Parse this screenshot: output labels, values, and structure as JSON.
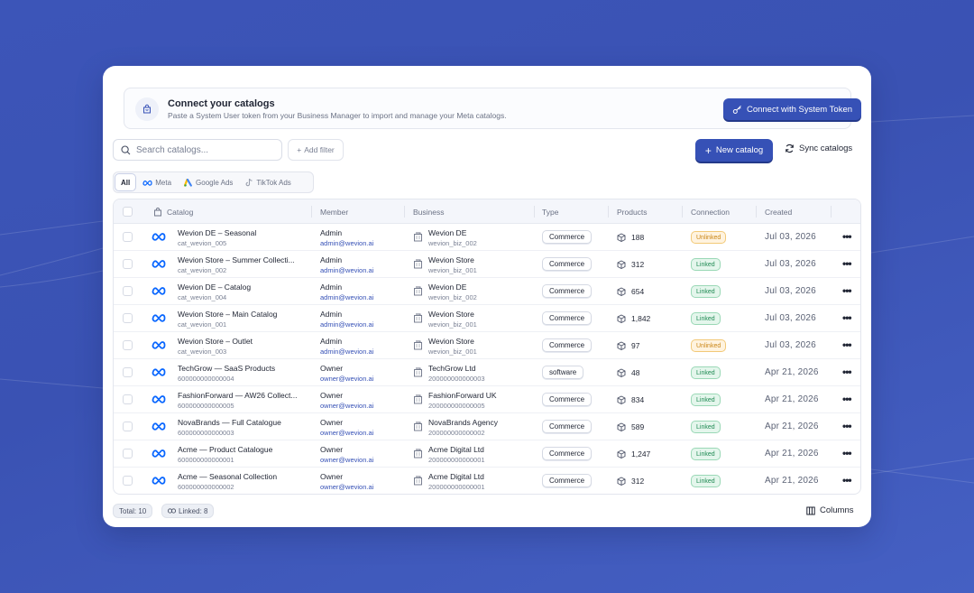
{
  "banner": {
    "title": "Connect your catalogs",
    "subtitle": "Paste a System User token from your Business Manager to import and manage your Meta catalogs.",
    "connect_label": "Connect with System Token"
  },
  "toolbar": {
    "search_placeholder": "Search catalogs...",
    "add_filter_label": "Add filter",
    "new_catalog_label": "New catalog",
    "sync_label": "Sync catalogs"
  },
  "tabs": [
    {
      "label": "All",
      "active": true
    },
    {
      "label": "Meta",
      "icon": "meta-icon"
    },
    {
      "label": "Google Ads",
      "icon": "google-ads-icon"
    },
    {
      "label": "TikTok Ads",
      "icon": "tiktok-icon"
    }
  ],
  "table": {
    "columns": [
      "Catalog",
      "Member",
      "Business",
      "Type",
      "Products",
      "Connection",
      "Created"
    ],
    "rows": [
      {
        "name": "Wevion DE – Seasonal",
        "id": "cat_wevion_005",
        "role": "Admin",
        "email": "admin@wevion.ai",
        "business": "Wevion DE",
        "business_id": "wevion_biz_002",
        "type": "Commerce",
        "products": "188",
        "connection": "Unlinked",
        "created": "Jul 03, 2026"
      },
      {
        "name": "Wevion Store – Summer Collecti...",
        "id": "cat_wevion_002",
        "role": "Admin",
        "email": "admin@wevion.ai",
        "business": "Wevion Store",
        "business_id": "wevion_biz_001",
        "type": "Commerce",
        "products": "312",
        "connection": "Linked",
        "created": "Jul 03, 2026"
      },
      {
        "name": "Wevion DE – Catalog",
        "id": "cat_wevion_004",
        "role": "Admin",
        "email": "admin@wevion.ai",
        "business": "Wevion DE",
        "business_id": "wevion_biz_002",
        "type": "Commerce",
        "products": "654",
        "connection": "Linked",
        "created": "Jul 03, 2026"
      },
      {
        "name": "Wevion Store – Main Catalog",
        "id": "cat_wevion_001",
        "role": "Admin",
        "email": "admin@wevion.ai",
        "business": "Wevion Store",
        "business_id": "wevion_biz_001",
        "type": "Commerce",
        "products": "1,842",
        "connection": "Linked",
        "created": "Jul 03, 2026"
      },
      {
        "name": "Wevion Store – Outlet",
        "id": "cat_wevion_003",
        "role": "Admin",
        "email": "admin@wevion.ai",
        "business": "Wevion Store",
        "business_id": "wevion_biz_001",
        "type": "Commerce",
        "products": "97",
        "connection": "Unlinked",
        "created": "Jul 03, 2026"
      },
      {
        "name": "TechGrow — SaaS Products",
        "id": "600000000000004",
        "role": "Owner",
        "email": "owner@wevion.ai",
        "business": "TechGrow Ltd",
        "business_id": "200000000000003",
        "type": "software",
        "products": "48",
        "connection": "Linked",
        "created": "Apr 21, 2026"
      },
      {
        "name": "FashionForward — AW26 Collect...",
        "id": "600000000000005",
        "role": "Owner",
        "email": "owner@wevion.ai",
        "business": "FashionForward UK",
        "business_id": "200000000000005",
        "type": "Commerce",
        "products": "834",
        "connection": "Linked",
        "created": "Apr 21, 2026"
      },
      {
        "name": "NovaBrands — Full Catalogue",
        "id": "600000000000003",
        "role": "Owner",
        "email": "owner@wevion.ai",
        "business": "NovaBrands Agency",
        "business_id": "200000000000002",
        "type": "Commerce",
        "products": "589",
        "connection": "Linked",
        "created": "Apr 21, 2026"
      },
      {
        "name": "Acme — Product Catalogue",
        "id": "600000000000001",
        "role": "Owner",
        "email": "owner@wevion.ai",
        "business": "Acme Digital Ltd",
        "business_id": "200000000000001",
        "type": "Commerce",
        "products": "1,247",
        "connection": "Linked",
        "created": "Apr 21, 2026"
      },
      {
        "name": "Acme — Seasonal Collection",
        "id": "600000000000002",
        "role": "Owner",
        "email": "owner@wevion.ai",
        "business": "Acme Digital Ltd",
        "business_id": "200000000000001",
        "type": "Commerce",
        "products": "312",
        "connection": "Linked",
        "created": "Apr 21, 2026"
      }
    ]
  },
  "footer": {
    "total_label": "Total: 10",
    "linked_label": "Linked: 8",
    "columns_label": "Columns"
  },
  "colors": {
    "accent": "#3651b6",
    "linked": "#1f8a53",
    "unlinked": "#c98515",
    "background": "#3c55b8",
    "meta_blue": "#0866ff"
  }
}
